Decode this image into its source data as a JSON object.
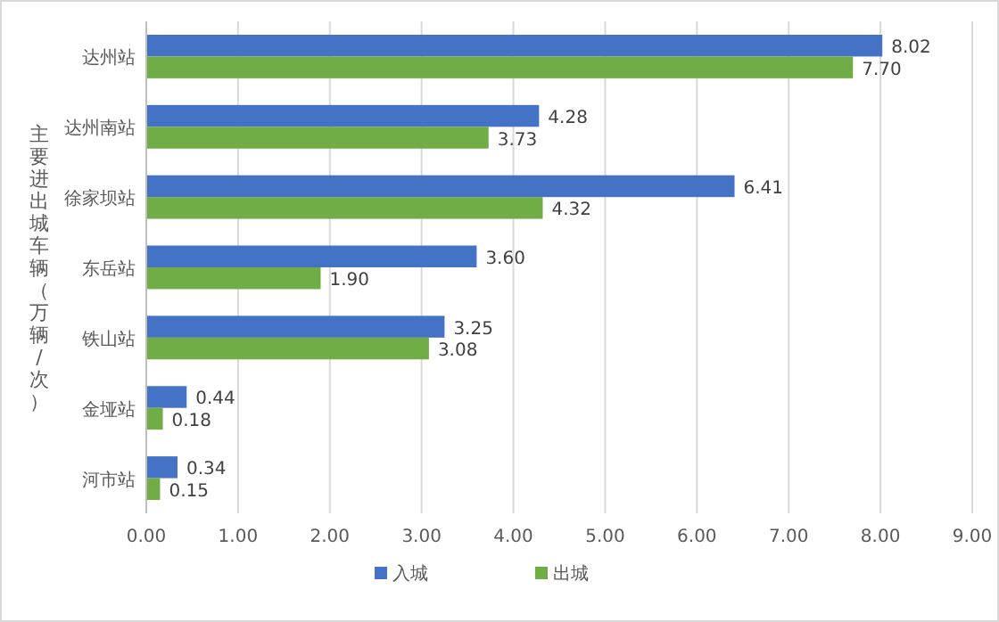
{
  "chart_data": {
    "type": "bar",
    "orientation": "horizontal",
    "ylabel": "主要进出城车辆（万辆/次）",
    "categories": [
      "达州站",
      "达州南站",
      "徐家坝站",
      "东岳站",
      "铁山站",
      "金垭站",
      "河市站"
    ],
    "series": [
      {
        "name": "入城",
        "color": "#4472c4",
        "values": [
          8.02,
          4.28,
          6.41,
          3.6,
          3.25,
          0.44,
          0.34
        ],
        "value_labels": [
          "8.02",
          "4.28",
          "6.41",
          "3.60",
          "3.25",
          "0.44",
          "0.34"
        ]
      },
      {
        "name": "出城",
        "color": "#70ad47",
        "values": [
          7.7,
          3.73,
          4.32,
          1.9,
          3.08,
          0.18,
          0.15
        ],
        "value_labels": [
          "7.70",
          "3.73",
          "4.32",
          "1.90",
          "3.08",
          "0.18",
          "0.15"
        ]
      }
    ],
    "xlim": [
      0,
      9
    ],
    "xticks": [
      {
        "value": 0,
        "label": "0.00"
      },
      {
        "value": 1,
        "label": "1.00"
      },
      {
        "value": 2,
        "label": "2.00"
      },
      {
        "value": 3,
        "label": "3.00"
      },
      {
        "value": 4,
        "label": "4.00"
      },
      {
        "value": 5,
        "label": "5.00"
      },
      {
        "value": 6,
        "label": "6.00"
      },
      {
        "value": 7,
        "label": "7.00"
      },
      {
        "value": 8,
        "label": "8.00"
      },
      {
        "value": 9,
        "label": "9.00"
      }
    ],
    "grid": "x",
    "legend": "bottom"
  }
}
